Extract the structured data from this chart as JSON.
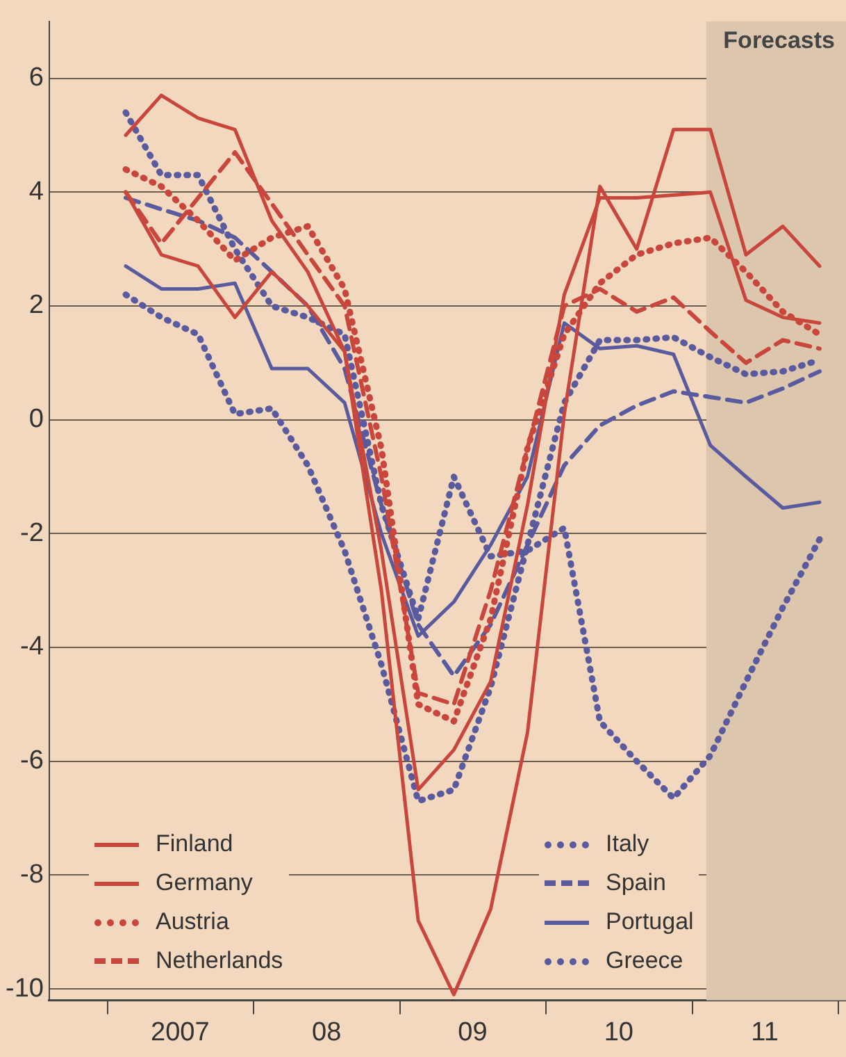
{
  "chart_data": {
    "type": "line",
    "x": [
      "2007-02-15",
      "2007-05-15",
      "2007-08-15",
      "2007-11-15",
      "2008-02-15",
      "2008-05-15",
      "2008-08-15",
      "2008-11-15",
      "2009-02-15",
      "2009-05-15",
      "2009-08-15",
      "2009-11-15",
      "2010-02-15",
      "2010-05-15",
      "2010-08-15",
      "2010-11-15",
      "2011-02-15",
      "2011-05-15",
      "2011-08-15",
      "2011-11-15"
    ],
    "xlim": [
      "2006-08-08",
      "2012-01-20"
    ],
    "xticks": [
      {
        "value": "2007-01-01",
        "label": null
      },
      {
        "value": "2007-07-01",
        "label": "2007"
      },
      {
        "value": "2008-01-01",
        "label": null
      },
      {
        "value": "2008-07-01",
        "label": "08"
      },
      {
        "value": "2009-01-01",
        "label": null
      },
      {
        "value": "2009-07-01",
        "label": "09"
      },
      {
        "value": "2010-01-01",
        "label": null
      },
      {
        "value": "2010-07-01",
        "label": "10"
      },
      {
        "value": "2011-01-01",
        "label": null
      },
      {
        "value": "2011-07-01",
        "label": "11"
      },
      {
        "value": "2012-01-01",
        "label": null
      }
    ],
    "ylim": [
      -10.2,
      7
    ],
    "yticks": [
      -10,
      -8,
      -6,
      -4,
      -2,
      0,
      2,
      4,
      6
    ],
    "grid": "y",
    "legend": "bottom",
    "bands": [
      {
        "axis": "x",
        "from": "2011-02-05",
        "to": "2012-01-20",
        "label": "Forecasts",
        "color": "#dcc6ae"
      }
    ],
    "series": [
      {
        "name": "Finland",
        "color": "#c8463c",
        "line_style": "solid",
        "values": [
          5.0,
          5.7,
          5.3,
          5.1,
          3.5,
          2.6,
          1.2,
          -3.0,
          -8.8,
          -10.1,
          -8.6,
          -5.5,
          0.1,
          4.1,
          3.0,
          5.1,
          5.1,
          2.9,
          3.4,
          2.7
        ]
      },
      {
        "name": "Germany",
        "color": "#c8463c",
        "line_style": "solid",
        "values": [
          4.0,
          2.9,
          2.7,
          1.8,
          2.6,
          2.0,
          1.2,
          -2.3,
          -6.5,
          -5.8,
          -4.6,
          -1.5,
          2.2,
          3.9,
          3.9,
          3.95,
          4.0,
          2.1,
          1.8,
          1.7
        ]
      },
      {
        "name": "Austria",
        "color": "#c8463c",
        "line_style": "dotted",
        "values": [
          4.4,
          4.1,
          3.5,
          2.8,
          3.2,
          3.4,
          2.3,
          -0.5,
          -5.0,
          -5.3,
          -3.5,
          -0.5,
          1.5,
          2.4,
          2.9,
          3.1,
          3.2,
          2.6,
          1.9,
          1.5
        ]
      },
      {
        "name": "Netherlands",
        "color": "#c8463c",
        "line_style": "dashed",
        "values": [
          4.0,
          3.1,
          3.9,
          4.7,
          3.8,
          2.9,
          2.0,
          -1.0,
          -4.8,
          -5.0,
          -3.0,
          -0.5,
          2.0,
          2.3,
          1.9,
          2.15,
          1.55,
          1.0,
          1.4,
          1.25
        ]
      },
      {
        "name": "Italy",
        "color": "#5a5a9e",
        "line_style": "dotted",
        "values": [
          2.2,
          1.8,
          1.5,
          0.1,
          0.2,
          -0.8,
          -2.3,
          -4.3,
          -6.7,
          -6.5,
          -4.7,
          -2.2,
          0.3,
          1.4,
          1.4,
          1.45,
          1.1,
          0.8,
          0.85,
          1.05
        ]
      },
      {
        "name": "Spain",
        "color": "#5a5a9e",
        "line_style": "dashed",
        "values": [
          3.9,
          3.7,
          3.5,
          3.2,
          2.6,
          2.0,
          0.9,
          -1.5,
          -3.6,
          -4.5,
          -3.6,
          -2.2,
          -0.8,
          -0.1,
          0.25,
          0.5,
          0.4,
          0.3,
          0.55,
          0.85
        ]
      },
      {
        "name": "Portugal",
        "color": "#5a5a9e",
        "line_style": "solid",
        "values": [
          2.7,
          2.3,
          2.3,
          2.4,
          0.9,
          0.9,
          0.3,
          -2.0,
          -3.8,
          -3.2,
          -2.2,
          -1.0,
          1.7,
          1.25,
          1.3,
          1.15,
          -0.45,
          -1.0,
          -1.55,
          -1.45
        ]
      },
      {
        "name": "Greece",
        "color": "#5a5a9e",
        "line_style": "dotted",
        "values": [
          5.4,
          4.3,
          4.3,
          3.0,
          2.0,
          1.8,
          1.5,
          -1.5,
          -3.5,
          -1.0,
          -2.4,
          -2.3,
          -1.9,
          -5.3,
          -6.0,
          -6.65,
          -5.9,
          -4.6,
          -3.3,
          -2.1
        ]
      }
    ]
  }
}
